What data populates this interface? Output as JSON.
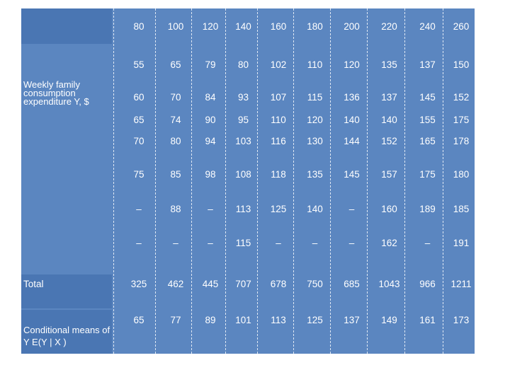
{
  "labels": {
    "y_label": "Weekly family consumption expenditure Y, $",
    "total": "Total",
    "means": "Conditional means of Y E(Y | X )"
  },
  "x_values": [
    "80",
    "100",
    "120",
    "140",
    "160",
    "180",
    "200",
    "220",
    "240",
    "260"
  ],
  "y_rows": [
    [
      "55",
      "65",
      "79",
      "80",
      "102",
      "110",
      "120",
      "135",
      "137",
      "150"
    ],
    [
      "60",
      "70",
      "84",
      "93",
      "107",
      "115",
      "136",
      "137",
      "145",
      "152"
    ],
    [
      "65",
      "74",
      "90",
      "95",
      "110",
      "120",
      "140",
      "140",
      "155",
      "175"
    ],
    [
      "70",
      "80",
      "94",
      "103",
      "116",
      "130",
      "144",
      "152",
      "165",
      "178"
    ],
    [
      "75",
      "85",
      "98",
      "108",
      "118",
      "135",
      "145",
      "157",
      "175",
      "180"
    ],
    [
      "–",
      "88",
      "–",
      "113",
      "125",
      "140",
      "–",
      "160",
      "189",
      "185"
    ],
    [
      "–",
      "–",
      "–",
      "115",
      "–",
      "–",
      "–",
      "162",
      "–",
      "191"
    ]
  ],
  "totals": [
    "325",
    "462",
    "445",
    "707",
    "678",
    "750",
    "685",
    "1043",
    "966",
    "1211"
  ],
  "means": [
    "65",
    "77",
    "89",
    "101",
    "113",
    "125",
    "137",
    "149",
    "161",
    "173"
  ],
  "colors": {
    "cell_bg": "#5b86c0",
    "band_bg": "#4a76b3",
    "text": "#ffffff",
    "divider": "#dfe8f4"
  }
}
